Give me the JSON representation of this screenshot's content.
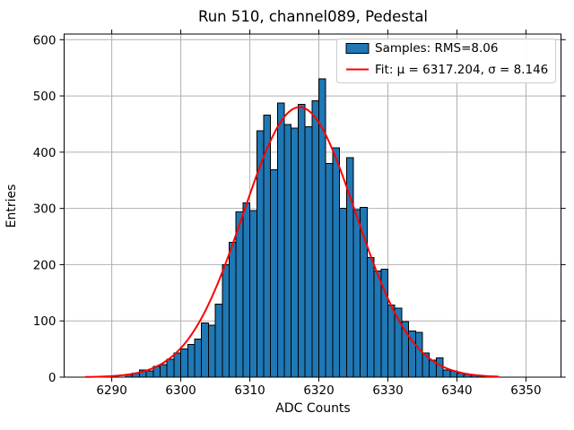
{
  "title": "Run 510, channel089, Pedestal",
  "x_axis": {
    "label": "ADC Counts",
    "ticks": [
      6290,
      6300,
      6310,
      6320,
      6330,
      6340,
      6350
    ],
    "range": [
      6283.1,
      6355.1
    ]
  },
  "y_axis": {
    "label": "Entries",
    "ticks": [
      0,
      100,
      200,
      300,
      400,
      500,
      600
    ],
    "range": [
      0,
      610
    ]
  },
  "legend": {
    "samples_label": "Samples: RMS=8.06",
    "fit_label": "Fit: μ = 6317.204, σ = 8.146"
  },
  "colors": {
    "bar_fill": "#1f77b4",
    "bar_edge": "#000000",
    "fit_line": "#ff0000",
    "grid": "#b0b0b0",
    "spine": "#000000",
    "legend_border": "#cccccc",
    "legend_bg": "#ffffff"
  },
  "chart_data": {
    "type": "bar",
    "title": "Run 510, channel089, Pedestal",
    "xlabel": "ADC Counts",
    "ylabel": "Entries",
    "xlim": [
      6283.1,
      6355.1
    ],
    "ylim": [
      0,
      610
    ],
    "grid": true,
    "legend_position": "upper right",
    "series": [
      {
        "name": "Samples: RMS=8.06",
        "type": "histogram",
        "rms": 8.06,
        "bin_start": 6292,
        "bin_width": 1,
        "counts": [
          4,
          7,
          13,
          11,
          19,
          22,
          32,
          43,
          50,
          58,
          68,
          96,
          92,
          130,
          200,
          240,
          294,
          310,
          296,
          438,
          466,
          369,
          487,
          449,
          443,
          485,
          445,
          491,
          530,
          380,
          408,
          300,
          390,
          298,
          302,
          213,
          189,
          192,
          128,
          123,
          99,
          82,
          80,
          43,
          30,
          34,
          13,
          11,
          7,
          5,
          3,
          2
        ]
      },
      {
        "name": "Fit: μ = 6317.204, σ = 8.146",
        "type": "gaussian-line",
        "mu": 6317.204,
        "sigma": 8.146,
        "amplitude": 480,
        "x_start": 6286.2,
        "x_end": 6346.0
      }
    ]
  }
}
